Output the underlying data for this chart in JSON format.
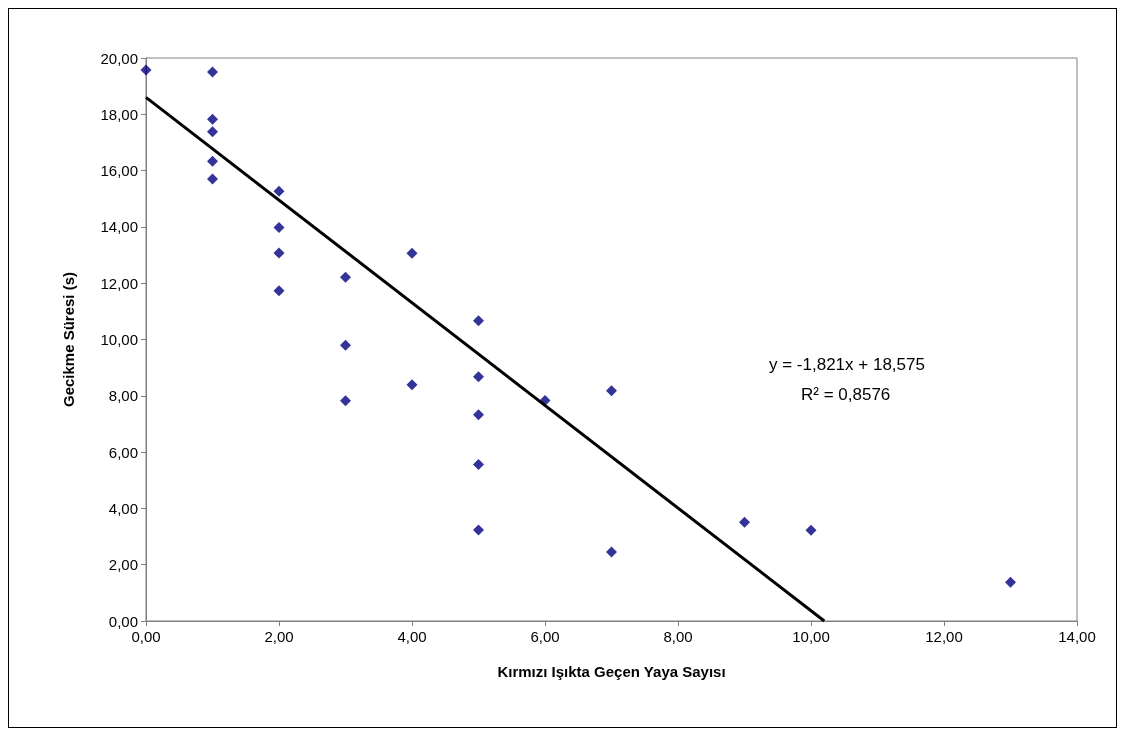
{
  "chart_data": {
    "type": "scatter",
    "xlabel": "Kırmızı Işıkta Geçen Yaya Sayısı",
    "ylabel": "Gecikme Süresi (s)",
    "xlim": [
      0,
      14
    ],
    "ylim": [
      0,
      20
    ],
    "xticks": [
      {
        "value": 0,
        "label": "0,00"
      },
      {
        "value": 2,
        "label": "2,00"
      },
      {
        "value": 4,
        "label": "4,00"
      },
      {
        "value": 6,
        "label": "6,00"
      },
      {
        "value": 8,
        "label": "8,00"
      },
      {
        "value": 10,
        "label": "10,00"
      },
      {
        "value": 12,
        "label": "12,00"
      },
      {
        "value": 14,
        "label": "14,00"
      }
    ],
    "yticks": [
      {
        "value": 0,
        "label": "0,00"
      },
      {
        "value": 2,
        "label": "2,00"
      },
      {
        "value": 4,
        "label": "4,00"
      },
      {
        "value": 6,
        "label": "6,00"
      },
      {
        "value": 8,
        "label": "8,00"
      },
      {
        "value": 10,
        "label": "10,00"
      },
      {
        "value": 12,
        "label": "12,00"
      },
      {
        "value": 14,
        "label": "14,00"
      },
      {
        "value": 16,
        "label": "16,00"
      },
      {
        "value": 18,
        "label": "18,00"
      },
      {
        "value": 20,
        "label": "20,00"
      }
    ],
    "grid": false,
    "marker": "diamond",
    "annotations": [
      "y = -1,821x + 18,575",
      "R² = 0,8576"
    ],
    "series": [
      {
        "color": "#000080",
        "x": [
          0,
          1,
          1,
          1,
          1,
          1,
          2,
          2,
          2,
          2,
          3,
          3,
          3,
          4,
          4,
          5,
          5,
          5,
          5,
          5,
          6,
          7,
          7,
          9,
          10,
          13
        ],
        "values": [
          19.57,
          19.5,
          17.82,
          17.38,
          16.33,
          15.7,
          15.27,
          13.98,
          13.07,
          11.73,
          12.21,
          9.8,
          7.82,
          13.06,
          8.39,
          10.67,
          8.68,
          7.33,
          5.56,
          3.23,
          7.83,
          8.18,
          2.45,
          3.51,
          3.22,
          1.38
        ]
      },
      {
        "type": "line",
        "color": "#000000",
        "marker": "none",
        "line_style": "solid",
        "x": [
          0,
          10.2
        ],
        "values": [
          18.6,
          0
        ]
      }
    ]
  }
}
